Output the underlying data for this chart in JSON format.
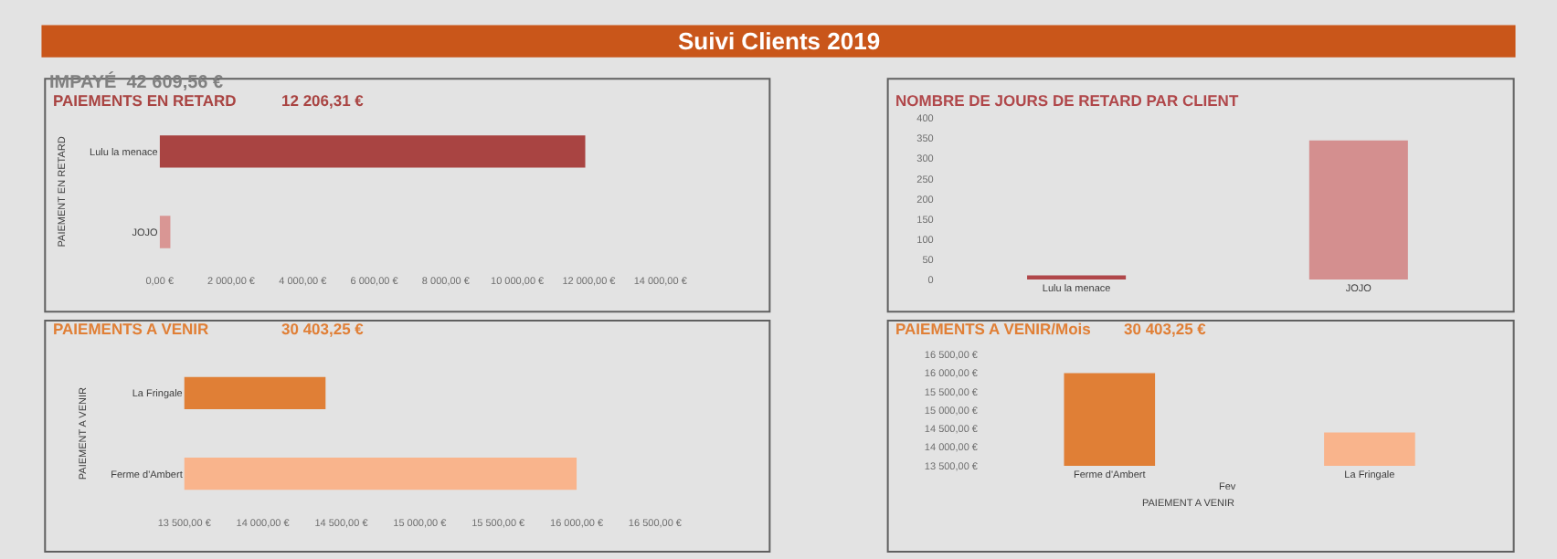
{
  "chart_data": [
    {
      "type": "other",
      "title": "Suivi Clients 2019",
      "annotations": [
        "IMPAYÉ  42 609,56 €"
      ]
    },
    {
      "type": "bar",
      "orientation": "horizontal",
      "title": "PAIEMENTS EN RETARD",
      "subtitle": "12 206,31 €",
      "ylabel": "PAIEMENT EN RETARD",
      "categories": [
        "Lulu la menace",
        "JOJO"
      ],
      "values": [
        11900,
        300
      ],
      "colors": [
        "#a94442",
        "#d99694"
      ],
      "xlim": [
        0,
        14000
      ],
      "xticks": [
        {
          "value": 0,
          "label": "0,00 €"
        },
        {
          "value": 2000,
          "label": "2 000,00 €"
        },
        {
          "value": 4000,
          "label": "4 000,00 €"
        },
        {
          "value": 6000,
          "label": "6 000,00 €"
        },
        {
          "value": 8000,
          "label": "8 000,00 €"
        },
        {
          "value": 10000,
          "label": "10 000,00 €"
        },
        {
          "value": 12000,
          "label": "12 000,00 €"
        },
        {
          "value": 14000,
          "label": "14 000,00 €"
        }
      ]
    },
    {
      "type": "bar",
      "title": "NOMBRE DE JOURS DE RETARD PAR CLIENT",
      "categories": [
        "Lulu la menace",
        "JOJO"
      ],
      "values": [
        10,
        345
      ],
      "colors": [
        "#b0474a",
        "#d48f8f"
      ],
      "ylim": [
        0,
        400
      ],
      "yticks": [
        0,
        50,
        100,
        150,
        200,
        250,
        300,
        350,
        400
      ]
    },
    {
      "type": "bar",
      "orientation": "horizontal",
      "title": "PAIEMENTS A VENIR",
      "subtitle": "30 403,25 €",
      "ylabel": "PAIEMENT A VENIR",
      "categories": [
        "La Fringale",
        "Ferme d'Ambert"
      ],
      "values": [
        14400,
        16000
      ],
      "colors": [
        "#e07f36",
        "#f9b48c"
      ],
      "xlim": [
        13500,
        16500
      ],
      "xticks": [
        {
          "value": 13500,
          "label": "13 500,00 €"
        },
        {
          "value": 14000,
          "label": "14 000,00 €"
        },
        {
          "value": 14500,
          "label": "14 500,00 €"
        },
        {
          "value": 15000,
          "label": "15 000,00 €"
        },
        {
          "value": 15500,
          "label": "15 500,00 €"
        },
        {
          "value": 16000,
          "label": "16 000,00 €"
        },
        {
          "value": 16500,
          "label": "16 500,00 €"
        }
      ]
    },
    {
      "type": "bar",
      "title": "PAIEMENTS A VENIR/Mois",
      "subtitle": "30 403,25 €",
      "xlabel": "PAIEMENT A VENIR",
      "annotations": [
        "Fev"
      ],
      "categories": [
        "Ferme d'Ambert",
        "La Fringale"
      ],
      "values": [
        16000,
        14400
      ],
      "colors": [
        "#e07f36",
        "#f9b48c"
      ],
      "ylim": [
        13500,
        16500
      ],
      "yticks": [
        {
          "value": 13500,
          "label": "13 500,00 €"
        },
        {
          "value": 14000,
          "label": "14 000,00 €"
        },
        {
          "value": 14500,
          "label": "14 500,00 €"
        },
        {
          "value": 15000,
          "label": "15 000,00 €"
        },
        {
          "value": 15500,
          "label": "15 500,00 €"
        },
        {
          "value": 16000,
          "label": "16 000,00 €"
        },
        {
          "value": 16500,
          "label": "16 500,00 €"
        }
      ]
    }
  ]
}
